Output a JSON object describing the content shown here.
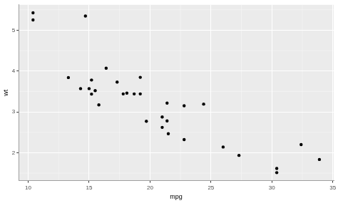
{
  "chart_data": {
    "type": "scatter",
    "x_label": "mpg",
    "y_label": "wt",
    "x": [
      21.0,
      21.0,
      22.8,
      21.4,
      18.7,
      18.1,
      14.3,
      24.4,
      22.8,
      19.2,
      17.8,
      16.4,
      17.3,
      15.2,
      10.4,
      10.4,
      14.7,
      32.4,
      30.4,
      33.9,
      21.5,
      15.5,
      15.2,
      13.3,
      19.2,
      27.3,
      26.0,
      30.4,
      15.8,
      19.7,
      15.0,
      21.4
    ],
    "values": [
      2.62,
      2.875,
      2.32,
      3.215,
      3.44,
      3.46,
      3.57,
      3.19,
      3.15,
      3.44,
      3.44,
      4.07,
      3.73,
      3.78,
      5.25,
      5.424,
      5.345,
      2.2,
      1.615,
      1.835,
      2.465,
      3.52,
      3.435,
      3.84,
      3.845,
      1.935,
      2.14,
      1.513,
      3.17,
      2.77,
      3.57,
      2.78
    ],
    "color": "#000000",
    "marker": "circle",
    "xlim": [
      9.225,
      35.075
    ],
    "xticks": [
      10,
      15,
      20,
      25,
      30,
      35
    ],
    "ylim": [
      1.317,
      5.62
    ],
    "yticks": [
      2,
      3,
      4,
      5
    ],
    "grid": true
  }
}
